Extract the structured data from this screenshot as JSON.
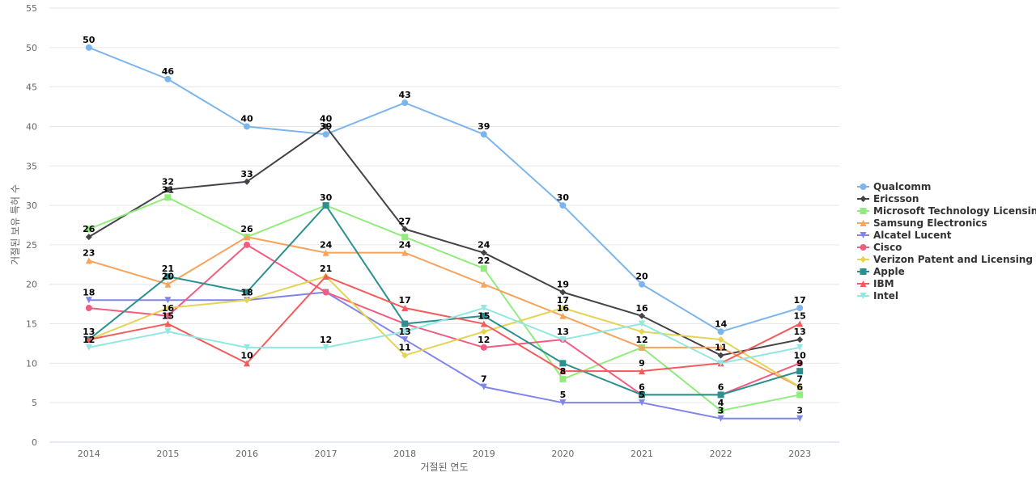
{
  "chart_data": {
    "type": "line",
    "xlabel": "거절된 연도",
    "ylabel": "거절된 보유 특허 수",
    "ylim": [
      0,
      55
    ],
    "yticks": [
      0,
      5,
      10,
      15,
      20,
      25,
      30,
      35,
      40,
      45,
      50,
      55
    ],
    "grid": true,
    "legend_position": "right",
    "categories": [
      "2014",
      "2015",
      "2016",
      "2017",
      "2018",
      "2019",
      "2020",
      "2021",
      "2022",
      "2023"
    ],
    "series": [
      {
        "name": "Qualcomm",
        "color": "#7cb5ec",
        "marker": "circle",
        "values": [
          50,
          46,
          40,
          39,
          43,
          39,
          30,
          20,
          14,
          17
        ]
      },
      {
        "name": "Ericsson",
        "color": "#434348",
        "marker": "diamond",
        "values": [
          26,
          32,
          33,
          40,
          27,
          24,
          19,
          16,
          11,
          13
        ]
      },
      {
        "name": "Microsoft Technology Licensing",
        "color": "#90ed7d",
        "marker": "square",
        "values": [
          27,
          31,
          26,
          30,
          26,
          22,
          8,
          12,
          4,
          6
        ]
      },
      {
        "name": "Samsung Electronics",
        "color": "#f7a35c",
        "marker": "triangle",
        "values": [
          23,
          20,
          26,
          24,
          24,
          20,
          16,
          12,
          12,
          7
        ]
      },
      {
        "name": "Alcatel Lucent",
        "color": "#8085e9",
        "marker": "triangle-down",
        "values": [
          18,
          18,
          18,
          19,
          13,
          7,
          5,
          5,
          3,
          3
        ]
      },
      {
        "name": "Cisco",
        "color": "#f15c80",
        "marker": "circle",
        "values": [
          17,
          16,
          25,
          19,
          15,
          12,
          13,
          6,
          6,
          10
        ]
      },
      {
        "name": "Verizon Patent and Licensing",
        "color": "#e4d354",
        "marker": "diamond",
        "values": [
          13,
          17,
          18,
          21,
          11,
          14,
          17,
          14,
          13,
          7
        ]
      },
      {
        "name": "Apple",
        "color": "#2b908f",
        "marker": "square",
        "values": [
          13,
          21,
          19,
          30,
          15,
          16,
          10,
          6,
          6,
          9
        ]
      },
      {
        "name": "IBM",
        "color": "#f45b5b",
        "marker": "triangle",
        "values": [
          13,
          15,
          10,
          21,
          17,
          15,
          9,
          9,
          10,
          15
        ]
      },
      {
        "name": "Intel",
        "color": "#91e8e1",
        "marker": "triangle-down",
        "values": [
          12,
          14,
          12,
          12,
          14,
          17,
          13,
          15,
          10,
          12
        ]
      }
    ],
    "data_labels": [
      {
        "series": "Qualcomm",
        "points": [
          0,
          1,
          2,
          3,
          4,
          5,
          6,
          7,
          8,
          9
        ]
      },
      {
        "series": "Ericsson",
        "points": [
          0,
          1,
          2,
          3,
          4,
          5,
          6,
          7,
          8,
          9
        ]
      },
      {
        "series": "Microsoft Technology Licensing",
        "points": [
          1,
          3,
          5,
          6,
          7,
          8,
          9
        ]
      },
      {
        "series": "Samsung Electronics",
        "points": [
          0,
          1,
          2,
          3,
          4,
          6,
          9
        ]
      },
      {
        "series": "Alcatel Lucent",
        "points": [
          0,
          2,
          4,
          5,
          6,
          7,
          8,
          9
        ]
      },
      {
        "series": "Cisco",
        "points": [
          1,
          5,
          8,
          9
        ]
      },
      {
        "series": "Verizon Patent and Licensing",
        "points": [
          4,
          6
        ]
      },
      {
        "series": "Apple",
        "points": [
          1,
          7,
          9
        ]
      },
      {
        "series": "IBM",
        "points": [
          0,
          1,
          2,
          3,
          4,
          5,
          7,
          9
        ]
      },
      {
        "series": "Intel",
        "points": [
          0,
          3,
          6
        ]
      }
    ]
  }
}
